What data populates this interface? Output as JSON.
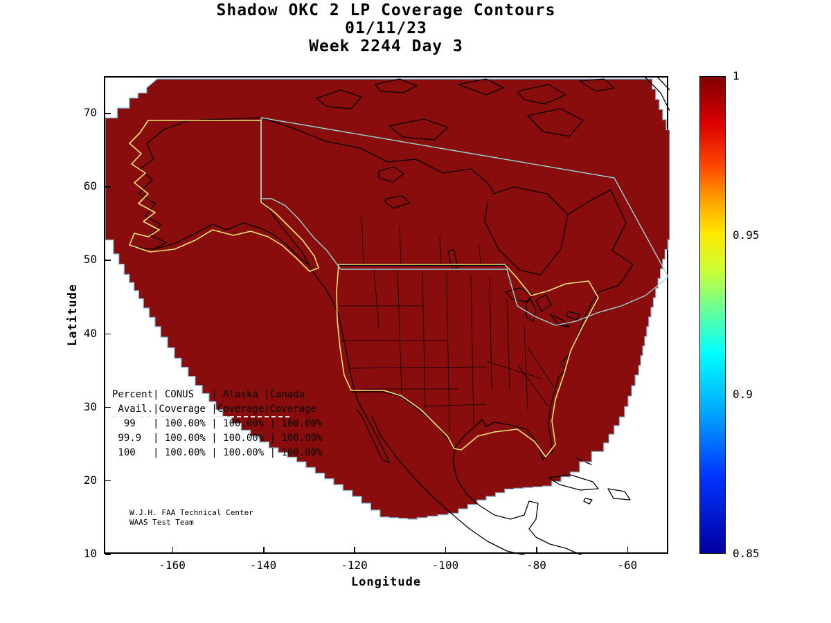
{
  "coverage_table_text": "Percent| CONUS   | Alaska |Canada\n Avail.|Coverage |Coverage|Coverage\n  99   | 100.00% | 100.00% | 100.00%\n 99.9  | 100.00% | 100.00% | 100.00%\n 100   | 100.00% | 100.00% | 100.00%",
  "credit_text": "W.J.H. FAA Technical Center\nWAAS Test Team",
  "chart_data": {
    "type": "heatmap",
    "title": "Shadow OKC 2 LP Coverage Contours",
    "date": "01/11/23",
    "week_day": "Week 2244 Day 3",
    "xlabel": "Longitude",
    "ylabel": "Latitude",
    "xlim": [
      -175,
      -51
    ],
    "ylim": [
      10,
      75
    ],
    "x_ticks": [
      -160,
      -140,
      -120,
      -100,
      -80,
      -60
    ],
    "y_ticks": [
      10,
      20,
      30,
      40,
      50,
      60,
      70
    ],
    "grid": false,
    "legend": "colorbar-right",
    "colorbar": {
      "colormap": "jet",
      "range": [
        0.85,
        1
      ],
      "tick_values": [
        1,
        0.95,
        0.9,
        0.85
      ],
      "tick_labels": [
        "1",
        "0.95",
        "0.9",
        "0.85"
      ],
      "gradient_stops": [
        [
          "#7f0000",
          0
        ],
        [
          "#dd0000",
          10
        ],
        [
          "#ff4a00",
          19
        ],
        [
          "#ffa300",
          26
        ],
        [
          "#ffe900",
          33
        ],
        [
          "#c8ff37",
          41
        ],
        [
          "#5affa5",
          50
        ],
        [
          "#00ffff",
          58
        ],
        [
          "#00aaff",
          70
        ],
        [
          "#0033ff",
          84
        ],
        [
          "#0000a0",
          100
        ]
      ]
    },
    "coverage_region": {
      "value": 1.0,
      "fill_color": "#8a0d0d",
      "edge_color": "#7fb8d8",
      "polygon_lonlat": [
        [
          -163.6,
          74.8
        ],
        [
          -55.6,
          74.8
        ],
        [
          -51.0,
          66.5
        ],
        [
          -51.0,
          52.9
        ],
        [
          -55.6,
          41.1
        ],
        [
          -57.8,
          34.5
        ],
        [
          -60.9,
          28.8
        ],
        [
          -65.5,
          24.1
        ],
        [
          -70.8,
          21.3
        ],
        [
          -76.9,
          19.4
        ],
        [
          -85.2,
          19.0
        ],
        [
          -91.3,
          17.5
        ],
        [
          -97.4,
          15.7
        ],
        [
          -106.5,
          14.9
        ],
        [
          -112.6,
          15.2
        ],
        [
          -118.7,
          18.0
        ],
        [
          -124.8,
          20.4
        ],
        [
          -130.9,
          22.7
        ],
        [
          -137.0,
          24.6
        ],
        [
          -143.1,
          27.0
        ],
        [
          -149.2,
          29.8
        ],
        [
          -153.7,
          33.1
        ],
        [
          -158.3,
          36.8
        ],
        [
          -162.8,
          41.1
        ],
        [
          -166.6,
          44.9
        ],
        [
          -169.7,
          48.2
        ],
        [
          -172.0,
          51.0
        ],
        [
          -173.2,
          52.9
        ],
        [
          -175.0,
          53.3
        ],
        [
          -175.0,
          69.5
        ],
        [
          -169.7,
          72.2
        ],
        [
          -165.9,
          73.6
        ]
      ]
    },
    "contours": {
      "conus_color": "#e8e878",
      "alaska_color": "#e8e878",
      "canada_color": "#96d8d8",
      "coastline_color": "#000000"
    },
    "availability_table": {
      "columns": [
        "Percent Avail.",
        "CONUS Coverage",
        "Alaska Coverage",
        "Canada Coverage"
      ],
      "rows": [
        [
          "99",
          "100.00%",
          "100.00%",
          "100.00%"
        ],
        [
          "99.9",
          "100.00%",
          "100.00%",
          "100.00%"
        ],
        [
          "100",
          "100.00%",
          "100.00%",
          "100.00%"
        ]
      ]
    }
  }
}
